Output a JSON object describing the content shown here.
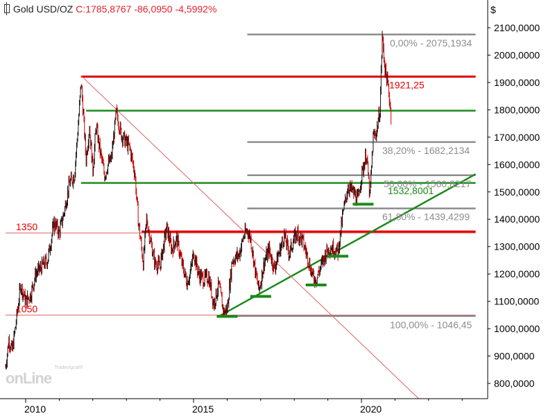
{
  "header": {
    "symbol": "Gold USD/OZ",
    "quote": "C:1785,8767 -86,0950 -4,5992%"
  },
  "watermark": {
    "brand": "onLine",
    "provider": "Tradesignal®"
  },
  "colors": {
    "price": "#111111",
    "down": "#cc0000",
    "fib": "#8c8c8c",
    "resistance": "#e00000",
    "support": "#1a8a1a",
    "trendline": "#1a8a1a",
    "thin_red": "#e06060"
  },
  "chart_data": {
    "type": "line",
    "title": "Gold USD/OZ",
    "ylabel": "$",
    "ylim": [
      750,
      2150
    ],
    "xlim": [
      2009.4,
      2023.4
    ],
    "x_ticks": [
      {
        "x": 2010,
        "label": "2010"
      },
      {
        "x": 2015,
        "label": "2015"
      },
      {
        "x": 2020,
        "label": "2020"
      }
    ],
    "y_ticks": [
      {
        "v": 2100,
        "label": "2100,0000"
      },
      {
        "v": 2000,
        "label": "2000,0000"
      },
      {
        "v": 1900,
        "label": "1900,0000"
      },
      {
        "v": 1800,
        "label": "1800,0000"
      },
      {
        "v": 1700,
        "label": "1700,0000"
      },
      {
        "v": 1600,
        "label": "1600,0000"
      },
      {
        "v": 1500,
        "label": "1500,0000"
      },
      {
        "v": 1400,
        "label": "1400,0000"
      },
      {
        "v": 1300,
        "label": "1300,0000"
      },
      {
        "v": 1200,
        "label": "1200,0000"
      },
      {
        "v": 1100,
        "label": "1100,0000"
      },
      {
        "v": 1000,
        "label": "1000,0000"
      },
      {
        "v": 900,
        "label": "900,0000"
      },
      {
        "v": 800,
        "label": "800,0000"
      }
    ],
    "grid": false,
    "series": [
      {
        "values": [
          [
            2009.4,
            860
          ],
          [
            2009.5,
            960
          ],
          [
            2009.6,
            920
          ],
          [
            2009.7,
            1010
          ],
          [
            2009.85,
            1160
          ],
          [
            2010.0,
            1100
          ],
          [
            2010.15,
            1125
          ],
          [
            2010.3,
            1200
          ],
          [
            2010.5,
            1230
          ],
          [
            2010.65,
            1250
          ],
          [
            2010.85,
            1390
          ],
          [
            2011.0,
            1350
          ],
          [
            2011.15,
            1430
          ],
          [
            2011.3,
            1530
          ],
          [
            2011.45,
            1560
          ],
          [
            2011.55,
            1720
          ],
          [
            2011.65,
            1900
          ],
          [
            2011.72,
            1780
          ],
          [
            2011.8,
            1620
          ],
          [
            2011.9,
            1740
          ],
          [
            2012.0,
            1580
          ],
          [
            2012.1,
            1740
          ],
          [
            2012.2,
            1660
          ],
          [
            2012.35,
            1560
          ],
          [
            2012.45,
            1600
          ],
          [
            2012.55,
            1620
          ],
          [
            2012.7,
            1790
          ],
          [
            2012.85,
            1710
          ],
          [
            2013.0,
            1680
          ],
          [
            2013.1,
            1660
          ],
          [
            2013.25,
            1570
          ],
          [
            2013.35,
            1400
          ],
          [
            2013.5,
            1240
          ],
          [
            2013.6,
            1400
          ],
          [
            2013.72,
            1320
          ],
          [
            2013.85,
            1240
          ],
          [
            2014.0,
            1230
          ],
          [
            2014.2,
            1370
          ],
          [
            2014.35,
            1290
          ],
          [
            2014.5,
            1330
          ],
          [
            2014.65,
            1240
          ],
          [
            2014.8,
            1170
          ],
          [
            2014.9,
            1200
          ],
          [
            2015.0,
            1280
          ],
          [
            2015.15,
            1200
          ],
          [
            2015.3,
            1180
          ],
          [
            2015.45,
            1190
          ],
          [
            2015.6,
            1090
          ],
          [
            2015.75,
            1160
          ],
          [
            2015.9,
            1060
          ],
          [
            2016.0,
            1070
          ],
          [
            2016.15,
            1250
          ],
          [
            2016.35,
            1270
          ],
          [
            2016.5,
            1340
          ],
          [
            2016.6,
            1360
          ],
          [
            2016.7,
            1330
          ],
          [
            2016.85,
            1200
          ],
          [
            2016.95,
            1140
          ],
          [
            2017.1,
            1240
          ],
          [
            2017.25,
            1290
          ],
          [
            2017.4,
            1220
          ],
          [
            2017.55,
            1280
          ],
          [
            2017.7,
            1340
          ],
          [
            2017.85,
            1275
          ],
          [
            2018.0,
            1330
          ],
          [
            2018.1,
            1350
          ],
          [
            2018.25,
            1320
          ],
          [
            2018.4,
            1260
          ],
          [
            2018.55,
            1190
          ],
          [
            2018.65,
            1180
          ],
          [
            2018.8,
            1230
          ],
          [
            2018.95,
            1280
          ],
          [
            2019.1,
            1300
          ],
          [
            2019.3,
            1280
          ],
          [
            2019.45,
            1420
          ],
          [
            2019.6,
            1520
          ],
          [
            2019.75,
            1500
          ],
          [
            2019.9,
            1470
          ],
          [
            2020.0,
            1560
          ],
          [
            2020.15,
            1640
          ],
          [
            2020.25,
            1480
          ],
          [
            2020.35,
            1700
          ],
          [
            2020.45,
            1720
          ],
          [
            2020.55,
            1800
          ],
          [
            2020.62,
            2070
          ],
          [
            2020.7,
            1950
          ],
          [
            2020.8,
            1880
          ],
          [
            2020.88,
            1785
          ]
        ]
      }
    ],
    "horizontal_levels": [
      {
        "name": "fib-0",
        "value": 2075.1934,
        "label": "0,00% - 2075,1934",
        "style": "fib",
        "x_start": 2016.6,
        "x_end": 2023.4
      },
      {
        "name": "resistance-1921",
        "value": 1921.25,
        "label": "1921,25",
        "style": "resistance",
        "x_start": 2011.65,
        "x_end": 2023.4
      },
      {
        "name": "support-1800",
        "value": 1797,
        "label": "",
        "style": "support",
        "x_start": 2011.8,
        "x_end": 2023.4
      },
      {
        "name": "fib-382",
        "value": 1682.2134,
        "label": "38,20% - 1682,2134",
        "style": "fib",
        "x_start": 2016.6,
        "x_end": 2023.4
      },
      {
        "name": "fib-50",
        "value": 1560.8217,
        "label": "50,00% - 1560,8217",
        "style": "fib",
        "x_start": 2016.6,
        "x_end": 2023.4
      },
      {
        "name": "support-1532",
        "value": 1532.8001,
        "label": "1532,8001",
        "style": "support",
        "x_start": 2011.65,
        "x_end": 2023.4
      },
      {
        "name": "fib-618",
        "value": 1439.4299,
        "label": "61,80% - 1439,4299",
        "style": "fib",
        "x_start": 2016.6,
        "x_end": 2023.4
      },
      {
        "name": "level-1350",
        "value": 1350,
        "label": "1350",
        "style": "thin_red",
        "x_start": 2009.4,
        "x_end": 2023.4
      },
      {
        "name": "resistance-1355",
        "value": 1355,
        "label": "",
        "style": "resistance",
        "x_start": 2013.45,
        "x_end": 2023.4
      },
      {
        "name": "level-1050",
        "value": 1050,
        "label": "1050",
        "style": "thin_red",
        "x_start": 2009.4,
        "x_end": 2023.4
      },
      {
        "name": "fib-100",
        "value": 1046.45,
        "label": "100,00% - 1046,45",
        "style": "fib",
        "x_start": 2016.0,
        "x_end": 2023.4
      }
    ],
    "trendlines": [
      {
        "name": "uptrend-line",
        "x1": 2015.75,
        "y1": 1045,
        "x2": 2023.4,
        "y2": 1565,
        "style": "trendline"
      },
      {
        "name": "downtrend-line",
        "x1": 2011.65,
        "y1": 1925,
        "x2": 2021.7,
        "y2": 745,
        "style": "thin_red"
      }
    ],
    "swing_lows": [
      {
        "x": 2016.0,
        "y": 1045
      },
      {
        "x": 2017.0,
        "y": 1118
      },
      {
        "x": 2018.65,
        "y": 1160
      },
      {
        "x": 2019.3,
        "y": 1265
      },
      {
        "x": 2020.05,
        "y": 1455
      }
    ]
  }
}
